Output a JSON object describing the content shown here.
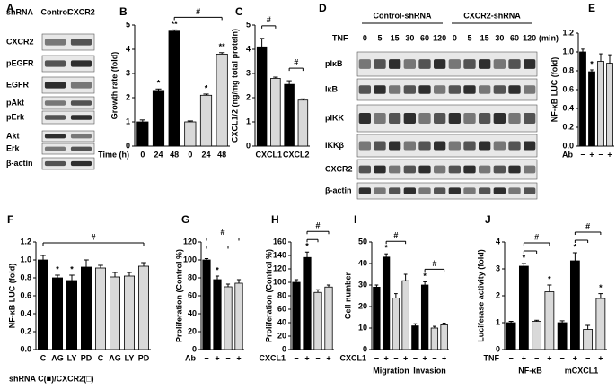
{
  "blots": [
    {
      "panel": "A",
      "header_label": "shRNA",
      "lanes": [
        "Control",
        "CXCR2"
      ],
      "rows": [
        "CXCR2",
        "pEGFR",
        "EGFR",
        "pAkt",
        "pErk",
        "Akt",
        "Erk",
        "β-actin"
      ]
    },
    {
      "panel": "D",
      "groups": [
        "Control-shRNA",
        "CXCR2-shRNA"
      ],
      "treatment": "TNF",
      "times": [
        "0",
        "5",
        "15",
        "30",
        "60",
        "120",
        "0",
        "5",
        "15",
        "30",
        "60",
        "120"
      ],
      "unit": "(min)",
      "rows": [
        "pIκB",
        "IκB",
        "pIKK",
        "IKKβ",
        "CXCR2",
        "β-actin"
      ]
    }
  ],
  "chart_data": [
    {
      "type": "bar",
      "panel": "B",
      "ylabel": "Growth rate (fold)",
      "xlabel": "Time (h)",
      "ylim": [
        0,
        5
      ],
      "yticks": [
        0,
        1,
        2,
        3,
        4,
        5
      ],
      "categories": [
        "0",
        "24",
        "48",
        "0",
        "24",
        "48"
      ],
      "values": [
        1.0,
        2.3,
        4.75,
        1.0,
        2.1,
        3.8
      ],
      "errors": [
        0.08,
        0.06,
        0.05,
        0.04,
        0.05,
        0.06
      ],
      "colors": [
        "#000000",
        "#000000",
        "#000000",
        "#d9d9d9",
        "#d9d9d9",
        "#d9d9d9"
      ],
      "significance": [
        null,
        "*",
        "**",
        null,
        "*",
        "**"
      ],
      "brackets": [
        {
          "label": "#",
          "from": 2,
          "to": 5
        }
      ]
    },
    {
      "type": "bar",
      "panel": "C",
      "ylabel": "CXCL1/2 (ng/mg total protein)",
      "ylim": [
        0,
        5
      ],
      "yticks": [
        0,
        1,
        2,
        3,
        4,
        5
      ],
      "categories": [
        null,
        null,
        null,
        null
      ],
      "groups": [
        {
          "label": "CXCL1",
          "from": 0,
          "to": 1
        },
        {
          "label": "CXCL2",
          "from": 2,
          "to": 3
        }
      ],
      "values": [
        4.1,
        2.8,
        2.55,
        1.9
      ],
      "errors": [
        0.35,
        0.05,
        0.15,
        0.05
      ],
      "colors": [
        "#000000",
        "#d9d9d9",
        "#000000",
        "#d9d9d9"
      ],
      "significance": [
        null,
        null,
        null,
        null
      ],
      "brackets": [
        {
          "label": "#",
          "from": 0,
          "to": 1
        },
        {
          "label": "#",
          "from": 2,
          "to": 3
        }
      ]
    },
    {
      "type": "bar",
      "panel": "E",
      "ylabel": "NF-κB LUC (fold)",
      "xlabel": "Ab",
      "ylim": [
        0,
        1.2
      ],
      "yticks": [
        {
          "value": 0,
          "label": "0.0"
        },
        0.2,
        0.4,
        0.6,
        0.8,
        {
          "value": 1,
          "label": "1.0"
        },
        1.2
      ],
      "categories": [
        "−",
        "+",
        "−",
        "+"
      ],
      "values": [
        1.0,
        0.79,
        0.9,
        0.88
      ],
      "errors": [
        0.03,
        0.02,
        0.08,
        0.09
      ],
      "colors": [
        "#000000",
        "#000000",
        "#d9d9d9",
        "#d9d9d9"
      ],
      "significance": [
        null,
        "*",
        null,
        null
      ],
      "brackets": []
    },
    {
      "type": "bar",
      "panel": "F",
      "ylabel": "NF-κB LUC (fold)",
      "ylim": [
        0,
        1.2
      ],
      "yticks": [
        {
          "value": 0,
          "label": "0.0"
        },
        0.2,
        0.4,
        0.6,
        0.8,
        {
          "value": 1,
          "label": "1.0"
        },
        1.2
      ],
      "categories": [
        "C",
        "AG",
        "LY",
        "PD",
        "C",
        "AG",
        "LY",
        "PD"
      ],
      "values": [
        1.0,
        0.8,
        0.77,
        0.92,
        0.91,
        0.81,
        0.82,
        0.93
      ],
      "errors": [
        0.05,
        0.03,
        0.06,
        0.08,
        0.03,
        0.05,
        0.04,
        0.04
      ],
      "colors": [
        "#000000",
        "#000000",
        "#000000",
        "#000000",
        "#d9d9d9",
        "#d9d9d9",
        "#d9d9d9",
        "#d9d9d9"
      ],
      "significance": [
        null,
        "*",
        "*",
        null,
        null,
        null,
        null,
        null
      ],
      "brackets": [
        {
          "label": "#",
          "from": 0,
          "to": 7
        }
      ],
      "note": "shRNA C(■)/CXCR2(□)"
    },
    {
      "type": "bar",
      "panel": "G",
      "ylabel": "Proliferation (Control %)",
      "xlabel": "Ab",
      "ylim": [
        0,
        120
      ],
      "yticks": [
        0,
        20,
        40,
        60,
        80,
        100,
        120
      ],
      "categories": [
        "−",
        "+",
        "−",
        "+"
      ],
      "values": [
        100,
        78,
        70,
        74
      ],
      "errors": [
        1.5,
        4,
        3,
        4
      ],
      "colors": [
        "#000000",
        "#000000",
        "#d9d9d9",
        "#d9d9d9"
      ],
      "significance": [
        null,
        "*",
        null,
        null
      ],
      "brackets": [
        {
          "from": 0,
          "to": 2
        },
        {
          "label": "#",
          "from": 0,
          "to": 3
        }
      ]
    },
    {
      "type": "bar",
      "panel": "H",
      "ylabel": "Proliferation (Control %)",
      "xlabel": "CXCL1",
      "ylim": [
        0,
        160
      ],
      "yticks": [
        0,
        20,
        40,
        60,
        80,
        100,
        120,
        140,
        160
      ],
      "categories": [
        "−",
        "+",
        "−",
        "+"
      ],
      "values": [
        100,
        137,
        85,
        93
      ],
      "errors": [
        4,
        8,
        4,
        3
      ],
      "colors": [
        "#000000",
        "#000000",
        "#d9d9d9",
        "#d9d9d9"
      ],
      "significance": [
        null,
        "*",
        null,
        null
      ],
      "brackets": [
        {
          "from": 1,
          "to": 2
        },
        {
          "label": "#",
          "from": 1,
          "to": 3
        }
      ]
    },
    {
      "type": "bar",
      "panel": "I",
      "ylabel": "Cell number",
      "xlabel": "CXCL1",
      "ylim": [
        0,
        50
      ],
      "yticks": [
        0,
        10,
        20,
        30,
        40,
        50
      ],
      "categories": [
        "−",
        "+",
        "−",
        "+",
        "−",
        "+",
        "−",
        "+"
      ],
      "groups": [
        {
          "label": "Migration",
          "from": 0,
          "to": 3
        },
        {
          "label": "Invasion",
          "from": 4,
          "to": 7
        }
      ],
      "values": [
        29,
        43,
        24,
        32,
        11,
        30,
        10,
        11.5
      ],
      "errors": [
        1,
        1.5,
        2,
        3,
        1,
        1.5,
        0.8,
        0.8
      ],
      "colors": [
        "#000000",
        "#000000",
        "#d9d9d9",
        "#d9d9d9",
        "#000000",
        "#000000",
        "#d9d9d9",
        "#d9d9d9"
      ],
      "significance": [
        null,
        "*",
        null,
        null,
        null,
        "*",
        null,
        null
      ],
      "brackets": [
        {
          "label": "#",
          "from": 1,
          "to": 3
        },
        {
          "label": "#",
          "from": 5,
          "to": 7
        }
      ]
    },
    {
      "type": "bar",
      "panel": "J",
      "ylabel": "Luciferase activity (fold)",
      "xlabel": "TNF",
      "ylim": [
        0,
        4
      ],
      "yticks": [
        0,
        1,
        2,
        3,
        4
      ],
      "categories": [
        "−",
        "+",
        "−",
        "+",
        "−",
        "+",
        "−",
        "+"
      ],
      "groups": [
        {
          "label": "NF-κB",
          "from": 0,
          "to": 3
        },
        {
          "label": "mCXCL1",
          "from": 4,
          "to": 7
        }
      ],
      "values": [
        1.0,
        3.1,
        1.05,
        2.15,
        1.0,
        3.3,
        0.75,
        1.9
      ],
      "errors": [
        0.05,
        0.1,
        0.04,
        0.25,
        0.07,
        0.3,
        0.15,
        0.18
      ],
      "colors": [
        "#000000",
        "#000000",
        "#d9d9d9",
        "#d9d9d9",
        "#000000",
        "#000000",
        "#d9d9d9",
        "#d9d9d9"
      ],
      "significance": [
        null,
        "*",
        null,
        "*",
        null,
        "*",
        null,
        "*"
      ],
      "brackets": [
        {
          "from": 1,
          "to": 2
        },
        {
          "label": "#",
          "from": 1,
          "to": 3
        },
        {
          "from": 5,
          "to": 6
        },
        {
          "label": "#",
          "from": 5,
          "to": 7
        }
      ]
    }
  ]
}
